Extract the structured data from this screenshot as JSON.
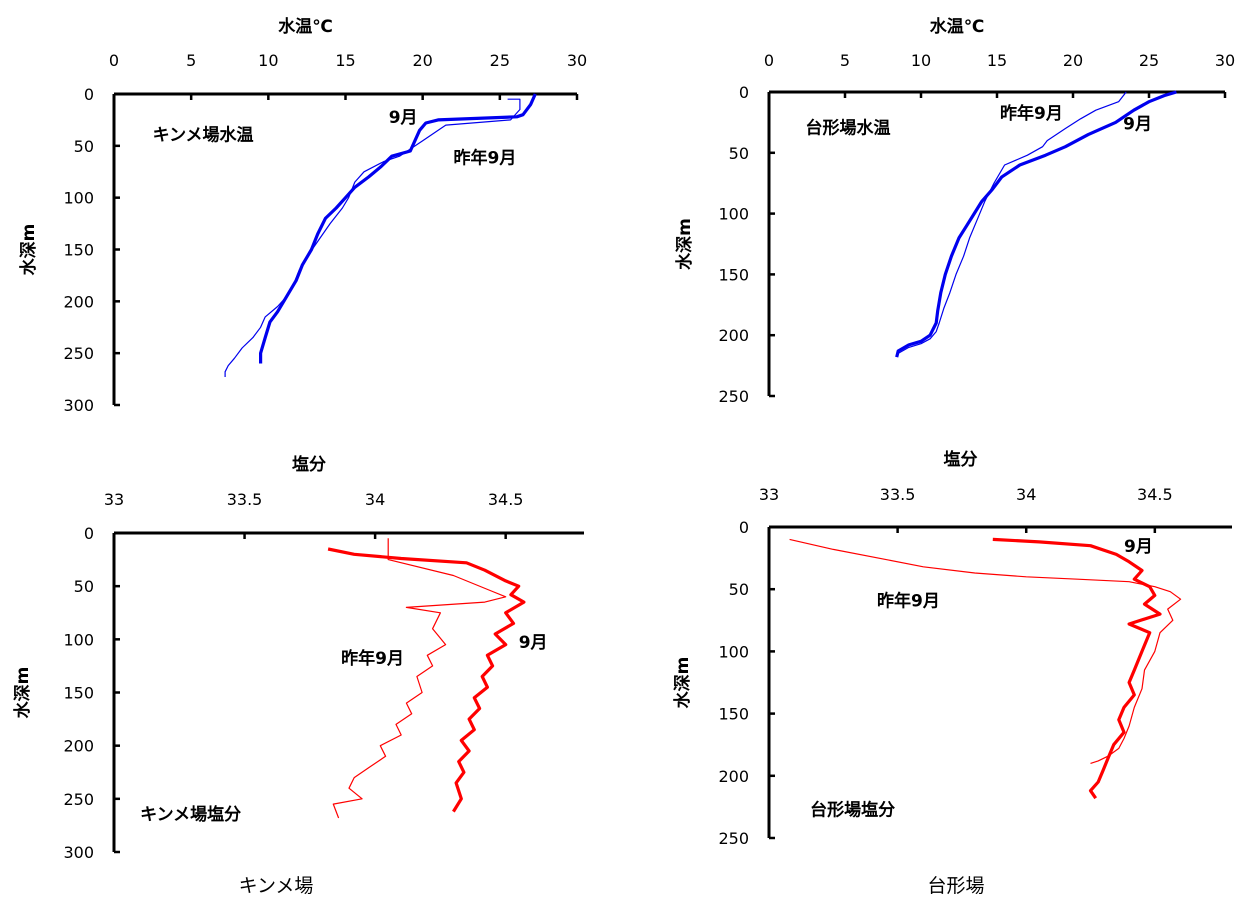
{
  "chart_data": [
    {
      "type": "line",
      "xlabel": "水温℃",
      "ylabel": "水深m",
      "xlim": [
        0,
        30
      ],
      "ylim": [
        0,
        300
      ],
      "xticks": [
        0,
        5,
        10,
        15,
        20,
        25,
        30
      ],
      "yticks": [
        0,
        50,
        100,
        150,
        200,
        250,
        300
      ],
      "color": "#0000ee",
      "annotations": [
        {
          "text": "キンメ場水温",
          "x": 2.5,
          "y": 45
        },
        {
          "text": "9月",
          "x": 17.8,
          "y": 28
        },
        {
          "text": "昨年9月",
          "x": 22,
          "y": 67
        }
      ],
      "series": [
        {
          "name": "9月",
          "bold": true,
          "x": [
            27.3,
            27.0,
            26.5,
            26.1,
            21.0,
            20.2,
            19.8,
            19.2,
            18.0,
            17.3,
            16.5,
            15.6,
            15.0,
            14.4,
            13.7,
            13.2,
            12.8,
            12.2,
            11.8,
            11.2,
            10.6,
            10.1,
            9.8,
            9.5,
            9.5
          ],
          "y": [
            0,
            10,
            20,
            22,
            25,
            28,
            35,
            55,
            60,
            70,
            80,
            90,
            100,
            110,
            120,
            135,
            150,
            165,
            180,
            195,
            210,
            220,
            235,
            250,
            260
          ]
        },
        {
          "name": "昨年9月",
          "x": [
            25.5,
            26.3,
            26.3,
            25.7,
            21.5,
            20.0,
            18.5,
            17.5,
            16.2,
            15.6,
            15.2,
            14.8,
            14.0,
            13.3,
            12.6,
            12.0,
            11.6,
            11.2,
            10.6,
            9.8,
            9.5,
            9.0,
            8.3,
            7.8,
            7.4,
            7.2,
            7.2
          ],
          "y": [
            5,
            5,
            15,
            25,
            30,
            45,
            60,
            65,
            75,
            85,
            100,
            110,
            125,
            140,
            155,
            170,
            185,
            195,
            205,
            215,
            225,
            235,
            245,
            255,
            262,
            268,
            273
          ]
        }
      ]
    },
    {
      "type": "line",
      "xlabel": "水温℃",
      "ylabel": "水深m",
      "xlim": [
        0,
        30
      ],
      "ylim": [
        0,
        250
      ],
      "xticks": [
        0,
        5,
        10,
        15,
        20,
        25,
        30
      ],
      "yticks": [
        0,
        50,
        100,
        150,
        200,
        250
      ],
      "color": "#0000ee",
      "annotations": [
        {
          "text": "台形場水温",
          "x": 2.4,
          "y": 34
        },
        {
          "text": "昨年9月",
          "x": 15.2,
          "y": 22
        },
        {
          "text": "9月",
          "x": 23.3,
          "y": 31
        }
      ],
      "series": [
        {
          "name": "9月",
          "bold": true,
          "x": [
            26.8,
            26.0,
            25.0,
            24.0,
            22.8,
            21.0,
            19.5,
            18.2,
            16.5,
            15.3,
            14.7,
            14.0,
            13.5,
            13.0,
            12.5,
            12.0,
            11.6,
            11.3,
            11.1,
            11.0,
            10.6,
            10.0,
            9.2,
            8.5,
            8.4
          ],
          "y": [
            0,
            3,
            8,
            15,
            25,
            35,
            45,
            52,
            60,
            70,
            80,
            90,
            100,
            110,
            120,
            135,
            150,
            165,
            180,
            190,
            200,
            205,
            208,
            213,
            218
          ]
        },
        {
          "name": "昨年9月",
          "x": [
            23.5,
            23.0,
            21.5,
            20.5,
            19.5,
            18.3,
            18.0,
            17.0,
            15.5,
            14.8,
            14.2,
            13.7,
            13.2,
            12.8,
            12.3,
            11.9,
            11.5,
            11.2,
            11.0,
            10.6,
            10.0,
            9.2,
            8.5
          ],
          "y": [
            0,
            8,
            15,
            22,
            30,
            40,
            45,
            52,
            60,
            75,
            90,
            105,
            120,
            135,
            150,
            165,
            178,
            190,
            197,
            203,
            207,
            210,
            215
          ]
        }
      ]
    },
    {
      "type": "line",
      "xlabel": "塩分",
      "ylabel": "水深m",
      "xlim": [
        33,
        34.8
      ],
      "ylim": [
        0,
        300
      ],
      "xticks": [
        33,
        33.5,
        34,
        34.5
      ],
      "yticks": [
        0,
        50,
        100,
        150,
        200,
        250,
        300
      ],
      "color": "#ff0000",
      "annotations": [
        {
          "text": "キンメ場塩分",
          "x": 33.1,
          "y": 270
        },
        {
          "text": "昨年9月",
          "x": 33.87,
          "y": 123
        },
        {
          "text": "9月",
          "x": 34.55,
          "y": 108
        }
      ],
      "series": [
        {
          "name": "9月",
          "bold": true,
          "x": [
            33.82,
            33.92,
            34.1,
            34.35,
            34.42,
            34.5,
            34.55,
            34.52,
            34.57,
            34.5,
            34.53,
            34.46,
            34.5,
            34.43,
            34.45,
            34.41,
            34.43,
            34.38,
            34.4,
            34.36,
            34.38,
            34.33,
            34.36,
            34.32,
            34.34,
            34.31,
            34.33,
            34.3
          ],
          "y": [
            15,
            20,
            24,
            28,
            35,
            45,
            50,
            58,
            65,
            75,
            85,
            95,
            105,
            115,
            125,
            135,
            145,
            155,
            165,
            175,
            185,
            195,
            205,
            215,
            225,
            235,
            250,
            262
          ]
        },
        {
          "name": "昨年9月",
          "x": [
            34.05,
            34.05,
            34.3,
            34.45,
            34.5,
            34.42,
            34.12,
            34.25,
            34.22,
            34.27,
            34.2,
            34.22,
            34.16,
            34.18,
            34.12,
            34.14,
            34.08,
            34.1,
            34.02,
            34.04,
            33.98,
            33.92,
            33.9,
            33.95,
            33.84,
            33.86
          ],
          "y": [
            5,
            25,
            40,
            55,
            60,
            65,
            70,
            75,
            90,
            105,
            115,
            125,
            135,
            150,
            160,
            170,
            180,
            190,
            200,
            210,
            220,
            230,
            240,
            250,
            255,
            268
          ]
        }
      ]
    },
    {
      "type": "line",
      "xlabel": "塩分",
      "ylabel": "水深m",
      "xlim": [
        33,
        34.8
      ],
      "ylim": [
        0,
        250
      ],
      "xticks": [
        33,
        33.5,
        34,
        34.5
      ],
      "yticks": [
        0,
        50,
        100,
        150,
        200,
        250
      ],
      "color": "#ff0000",
      "annotations": [
        {
          "text": "台形場塩分",
          "x": 33.16,
          "y": 232
        },
        {
          "text": "昨年9月",
          "x": 33.42,
          "y": 64
        },
        {
          "text": "9月",
          "x": 34.38,
          "y": 20
        }
      ],
      "series": [
        {
          "name": "9月",
          "bold": true,
          "x": [
            33.87,
            34.05,
            34.25,
            34.35,
            34.4,
            34.45,
            34.42,
            34.48,
            34.5,
            34.46,
            34.52,
            34.4,
            34.48,
            34.46,
            34.44,
            34.42,
            34.4,
            34.42,
            34.38,
            34.36,
            34.38,
            34.34,
            34.32,
            34.3,
            34.28,
            34.25,
            34.27
          ],
          "y": [
            10,
            12,
            15,
            22,
            28,
            35,
            42,
            48,
            55,
            62,
            70,
            78,
            85,
            95,
            105,
            115,
            125,
            135,
            145,
            155,
            165,
            175,
            185,
            195,
            205,
            212,
            218
          ]
        },
        {
          "name": "昨年9月",
          "x": [
            33.08,
            33.25,
            33.45,
            33.6,
            33.8,
            34.0,
            34.2,
            34.4,
            34.5,
            34.56,
            34.6,
            34.55,
            34.57,
            34.52,
            34.5,
            34.46,
            34.45,
            34.42,
            34.4,
            34.38,
            34.36,
            34.32,
            34.28,
            34.25
          ],
          "y": [
            10,
            18,
            26,
            32,
            37,
            40,
            42,
            44,
            48,
            52,
            58,
            66,
            75,
            85,
            100,
            115,
            130,
            145,
            160,
            170,
            178,
            184,
            188,
            190
          ]
        }
      ]
    }
  ],
  "captions": [
    "キンメ場",
    "台形場"
  ]
}
